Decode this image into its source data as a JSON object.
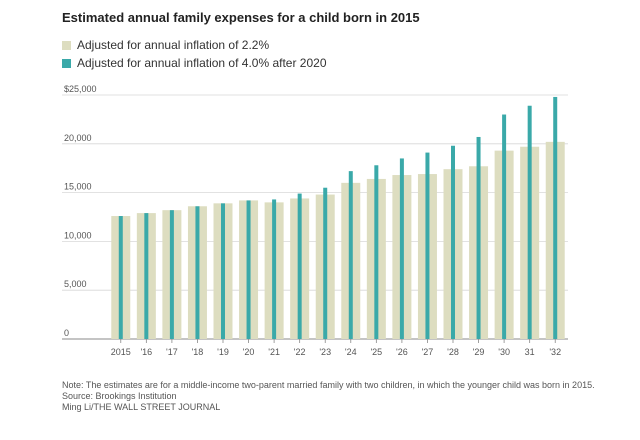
{
  "chart_data": {
    "type": "bar",
    "title": "Estimated annual family expenses for a child born in 2015",
    "categories": [
      "2015",
      "'16",
      "'17",
      "'18",
      "'19",
      "'20",
      "'21",
      "'22",
      "'23",
      "'24",
      "'25",
      "'26",
      "'27",
      "'28",
      "'29",
      "'30",
      "31",
      "'32"
    ],
    "series": [
      {
        "name": "Adjusted for annual inflation of 2.2%",
        "color": "#ddddc0",
        "values": [
          12600,
          12900,
          13200,
          13600,
          13900,
          14200,
          14000,
          14400,
          14800,
          16000,
          16400,
          16800,
          16900,
          17400,
          17700,
          19300,
          19700,
          20200
        ]
      },
      {
        "name": "Adjusted for annual inflation of 4.0% after 2020",
        "color": "#3aa9a9",
        "values": [
          12600,
          12900,
          13200,
          13600,
          13900,
          14200,
          14300,
          14900,
          15500,
          17200,
          17800,
          18500,
          19100,
          19800,
          20700,
          23000,
          23900,
          24800
        ]
      }
    ],
    "yticks": [
      {
        "value": 0,
        "label": "0"
      },
      {
        "value": 5000,
        "label": "5,000"
      },
      {
        "value": 10000,
        "label": "10,000"
      },
      {
        "value": 15000,
        "label": "15,000"
      },
      {
        "value": 20000,
        "label": "20,000"
      },
      {
        "value": 25000,
        "label": "$25,000"
      }
    ],
    "ylim": [
      0,
      25000
    ],
    "grid": true,
    "legend": "top-left",
    "xlabel": "",
    "ylabel": ""
  },
  "notes": {
    "note": "Note: The estimates are for a middle-income two-parent married family with two children, in which the younger child was born in 2015.",
    "source": "Source: Brookings Institution",
    "credit": "Ming Li/THE WALL STREET JOURNAL"
  }
}
